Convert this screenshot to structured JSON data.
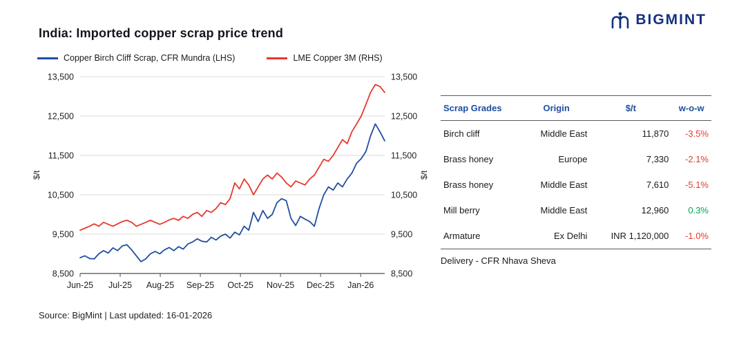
{
  "logo": {
    "text": "BIGMINT"
  },
  "title": "India: Imported copper scrap price trend",
  "legend": [
    {
      "label": "Copper Birch Cliff Scrap, CFR Mundra (LHS)",
      "color": "#1f4e9e"
    },
    {
      "label": "LME Copper 3M (RHS)",
      "color": "#e8372c"
    }
  ],
  "chart_data": {
    "type": "line",
    "title": "India: Imported copper scrap price trend",
    "ylabel_left": "$/t",
    "ylabel_right": "$/t",
    "ylim": [
      8500,
      13500
    ],
    "ytick_step": 1000,
    "grid": true,
    "legend_position": "top",
    "x_ticks": [
      "Jun-25",
      "Jul-25",
      "Aug-25",
      "Sep-25",
      "Oct-25",
      "Nov-25",
      "Dec-25",
      "Jan-26"
    ],
    "x_max_months": 7.6,
    "series": [
      {
        "name": "Copper Birch Cliff Scrap, CFR Mundra (LHS)",
        "axis": "left",
        "color": "#1f4e9e",
        "values": [
          8900,
          8950,
          8880,
          8870,
          9000,
          9080,
          9020,
          9150,
          9080,
          9200,
          9230,
          9100,
          8950,
          8800,
          8870,
          9000,
          9060,
          9000,
          9100,
          9160,
          9080,
          9180,
          9120,
          9250,
          9300,
          9380,
          9320,
          9300,
          9420,
          9350,
          9450,
          9500,
          9400,
          9550,
          9480,
          9700,
          9600,
          10050,
          9820,
          10100,
          9900,
          10000,
          10300,
          10400,
          10350,
          9900,
          9720,
          9950,
          9880,
          9820,
          9700,
          10150,
          10500,
          10700,
          10620,
          10800,
          10700,
          10900,
          11050,
          11300,
          11420,
          11600,
          12000,
          12300,
          12100,
          11870
        ]
      },
      {
        "name": "LME Copper 3M (RHS)",
        "axis": "right",
        "color": "#e8372c",
        "values": [
          9600,
          9650,
          9700,
          9760,
          9700,
          9800,
          9750,
          9700,
          9760,
          9820,
          9850,
          9800,
          9700,
          9750,
          9800,
          9850,
          9800,
          9750,
          9800,
          9860,
          9900,
          9850,
          9950,
          9900,
          10000,
          10050,
          9950,
          10100,
          10050,
          10150,
          10300,
          10250,
          10400,
          10800,
          10650,
          10900,
          10750,
          10500,
          10700,
          10900,
          11000,
          10900,
          11050,
          10950,
          10800,
          10700,
          10850,
          10800,
          10750,
          10900,
          11000,
          11200,
          11400,
          11350,
          11500,
          11700,
          11900,
          11800,
          12100,
          12300,
          12500,
          12800,
          13100,
          13300,
          13250,
          13100
        ]
      }
    ]
  },
  "table": {
    "headers": [
      "Scrap Grades",
      "Origin",
      "$/t",
      "w-o-w"
    ],
    "rows": [
      {
        "grade": "Birch cliff",
        "origin": "Middle East",
        "price": "11,870",
        "wow": "-3.5%",
        "wow_positive": false
      },
      {
        "grade": "Brass honey",
        "origin": "Europe",
        "price": "7,330",
        "wow": "-2.1%",
        "wow_positive": false
      },
      {
        "grade": "Brass honey",
        "origin": "Middle East",
        "price": "7,610",
        "wow": "-5.1%",
        "wow_positive": false
      },
      {
        "grade": "Mill berry",
        "origin": "Middle East",
        "price": "12,960",
        "wow": "0.3%",
        "wow_positive": true
      },
      {
        "grade": "Armature",
        "origin": "Ex Delhi",
        "price": "INR 1,120,000",
        "wow": "-1.0%",
        "wow_positive": false
      }
    ],
    "note": "Delivery - CFR Nhava Sheva"
  },
  "colors": {
    "header_blue": "#1f4ea0",
    "negative": "#e03c31",
    "positive": "#00a651",
    "grid": "#d9d9d9",
    "axis": "#4d4d4d",
    "logo_blue": "#15317e"
  },
  "source": "Source: BigMint | Last updated: 16-01-2026"
}
